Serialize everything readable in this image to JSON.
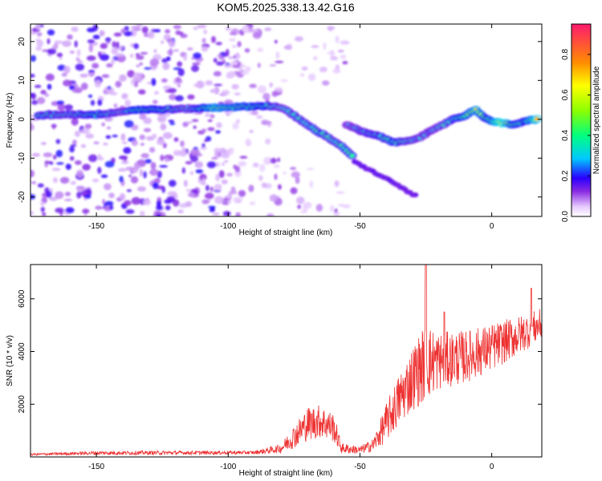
{
  "title": "KOM5.2025.338.13.42.G16",
  "chart_data": [
    {
      "type": "heatmap",
      "xlabel": "Height of straight line (km)",
      "ylabel": "Frequency (Hz)",
      "xlim": [
        -175,
        19
      ],
      "ylim": [
        -25,
        24.5
      ],
      "xticks": [
        -150,
        -100,
        -50,
        0
      ],
      "yticks": [
        -20,
        -10,
        0,
        10,
        20
      ],
      "colorbar": {
        "label": "Normalized spectral amplitude",
        "range": [
          0.0,
          0.95
        ],
        "ticks": [
          0.0,
          0.2,
          0.4,
          0.6,
          0.8
        ],
        "tick_labels": [
          "0.0",
          "0.2",
          "0.4",
          "0.6",
          "0.8"
        ]
      },
      "ridges": [
        {
          "name": "main-ridge",
          "points": [
            {
              "x": -172,
              "f": 1.0,
              "a": 0.5
            },
            {
              "x": -160,
              "f": 1.3,
              "a": 0.45
            },
            {
              "x": -150,
              "f": 1.2,
              "a": 0.55
            },
            {
              "x": -140,
              "f": 2.0,
              "a": 0.4
            },
            {
              "x": -135,
              "f": 2.5,
              "a": 0.6
            },
            {
              "x": -125,
              "f": 2.5,
              "a": 0.55
            },
            {
              "x": -115,
              "f": 2.7,
              "a": 0.4
            },
            {
              "x": -105,
              "f": 3.0,
              "a": 0.75
            },
            {
              "x": -95,
              "f": 3.2,
              "a": 0.65
            },
            {
              "x": -85,
              "f": 3.5,
              "a": 0.55
            },
            {
              "x": -80,
              "f": 3.0,
              "a": 0.4
            },
            {
              "x": -75,
              "f": 1.0,
              "a": 0.45
            },
            {
              "x": -70,
              "f": -1.5,
              "a": 0.45
            },
            {
              "x": -65,
              "f": -3.5,
              "a": 0.5
            },
            {
              "x": -60,
              "f": -5.5,
              "a": 0.45
            },
            {
              "x": -55,
              "f": -8.0,
              "a": 0.5
            },
            {
              "x": -52,
              "f": -10.0,
              "a": 0.5
            }
          ]
        },
        {
          "name": "upper-branch",
          "points": [
            {
              "x": -55,
              "f": -1.5,
              "a": 0.35
            },
            {
              "x": -48,
              "f": -3.5,
              "a": 0.45
            },
            {
              "x": -42,
              "f": -4.5,
              "a": 0.5
            },
            {
              "x": -37,
              "f": -6.0,
              "a": 0.55
            },
            {
              "x": -32,
              "f": -5.5,
              "a": 0.45
            },
            {
              "x": -27,
              "f": -4.5,
              "a": 0.4
            },
            {
              "x": -20,
              "f": -2.0,
              "a": 0.4
            },
            {
              "x": -15,
              "f": 0.0,
              "a": 0.5
            },
            {
              "x": -10,
              "f": 1.0,
              "a": 0.6
            },
            {
              "x": -6,
              "f": 2.5,
              "a": 0.75
            },
            {
              "x": -2,
              "f": 0.0,
              "a": 0.55
            },
            {
              "x": 4,
              "f": -1.0,
              "a": 0.95
            },
            {
              "x": 8,
              "f": -1.5,
              "a": 0.6
            },
            {
              "x": 12,
              "f": -0.5,
              "a": 0.55
            },
            {
              "x": 18,
              "f": 0.0,
              "a": 0.9
            }
          ]
        },
        {
          "name": "lower-branch",
          "points": [
            {
              "x": -52,
              "f": -11.0,
              "a": 0.2
            },
            {
              "x": -45,
              "f": -13.5,
              "a": 0.18
            },
            {
              "x": -38,
              "f": -16.0,
              "a": 0.16
            },
            {
              "x": -32,
              "f": -18.5,
              "a": 0.14
            },
            {
              "x": -28,
              "f": -20.0,
              "a": 0.12
            }
          ]
        }
      ]
    },
    {
      "type": "line",
      "xlabel": "Height of straight line (km)",
      "ylabel": "SNR (10 * v/v)",
      "xlim": [
        -175,
        19
      ],
      "ylim": [
        0,
        7300
      ],
      "xticks": [
        -150,
        -100,
        -50,
        0
      ],
      "yticks": [
        2000,
        4000,
        6000
      ],
      "color": "#ee3333",
      "series": [
        {
          "name": "SNR",
          "envelope": [
            {
              "x": -175,
              "base": 80,
              "amp": 80
            },
            {
              "x": -150,
              "base": 120,
              "amp": 150
            },
            {
              "x": -120,
              "base": 130,
              "amp": 150
            },
            {
              "x": -90,
              "base": 140,
              "amp": 130
            },
            {
              "x": -80,
              "base": 250,
              "amp": 350
            },
            {
              "x": -75,
              "base": 600,
              "amp": 900
            },
            {
              "x": -70,
              "base": 1000,
              "amp": 1300
            },
            {
              "x": -65,
              "base": 1100,
              "amp": 1300
            },
            {
              "x": -60,
              "base": 900,
              "amp": 1100
            },
            {
              "x": -57,
              "base": 250,
              "amp": 400
            },
            {
              "x": -50,
              "base": 200,
              "amp": 300
            },
            {
              "x": -45,
              "base": 350,
              "amp": 500
            },
            {
              "x": -40,
              "base": 1000,
              "amp": 1500
            },
            {
              "x": -35,
              "base": 1800,
              "amp": 2000
            },
            {
              "x": -30,
              "base": 2500,
              "amp": 2500
            },
            {
              "x": -25,
              "base": 3000,
              "amp": 3000
            },
            {
              "x": -20,
              "base": 3200,
              "amp": 2200
            },
            {
              "x": -10,
              "base": 3400,
              "amp": 2000
            },
            {
              "x": 0,
              "base": 3800,
              "amp": 1800
            },
            {
              "x": 10,
              "base": 4300,
              "amp": 1500
            },
            {
              "x": 19,
              "base": 4800,
              "amp": 1200
            }
          ],
          "peaks": [
            {
              "x": -25,
              "y": 7300
            },
            {
              "x": -18,
              "y": 5500
            },
            {
              "x": 15,
              "y": 6400
            }
          ]
        }
      ]
    }
  ]
}
